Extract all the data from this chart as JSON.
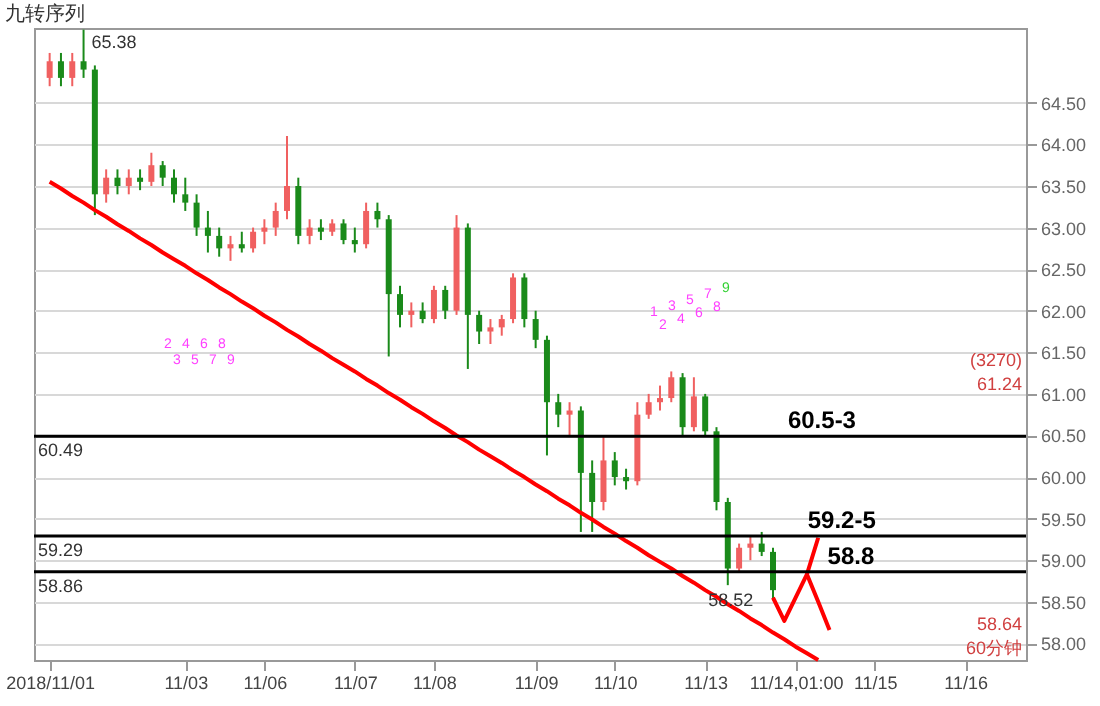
{
  "chart_data": {
    "type": "candlestick",
    "title": "九转序列",
    "categories": [
      "2018/11/01",
      null,
      null,
      null,
      null,
      null,
      null,
      null,
      null,
      null,
      null,
      null,
      "11/03",
      null,
      null,
      null,
      null,
      null,
      null,
      "11/06",
      null,
      null,
      null,
      null,
      null,
      null,
      null,
      "11/07",
      null,
      null,
      null,
      null,
      null,
      null,
      "11/08",
      null,
      null,
      null,
      null,
      null,
      null,
      null,
      null,
      "11/09",
      null,
      null,
      null,
      null,
      null,
      null,
      "11/10",
      null,
      null,
      null,
      null,
      null,
      null,
      null,
      "11/13",
      null,
      null,
      null,
      null,
      null,
      null,
      null,
      "11/14,01:00",
      null,
      null,
      null,
      null,
      null,
      null,
      "11/15",
      null,
      null,
      null,
      null,
      null,
      null,
      null,
      "11/16",
      null,
      null,
      null,
      null
    ],
    "ohlc": [
      [
        64.8,
        65.1,
        64.7,
        65.0
      ],
      [
        65.0,
        65.1,
        64.7,
        64.8
      ],
      [
        64.8,
        65.1,
        64.7,
        65.0
      ],
      [
        65.0,
        65.38,
        64.8,
        64.9
      ],
      [
        64.9,
        64.95,
        63.15,
        63.4
      ],
      [
        63.4,
        63.7,
        63.3,
        63.6
      ],
      [
        63.6,
        63.7,
        63.4,
        63.5
      ],
      [
        63.5,
        63.7,
        63.4,
        63.6
      ],
      [
        63.6,
        63.7,
        63.45,
        63.55
      ],
      [
        63.55,
        63.9,
        63.5,
        63.75
      ],
      [
        63.75,
        63.8,
        63.5,
        63.6
      ],
      [
        63.6,
        63.7,
        63.3,
        63.4
      ],
      [
        63.4,
        63.6,
        63.2,
        63.3
      ],
      [
        63.3,
        63.4,
        62.9,
        63.0
      ],
      [
        63.0,
        63.2,
        62.7,
        62.9
      ],
      [
        62.9,
        63.0,
        62.65,
        62.75
      ],
      [
        62.75,
        62.9,
        62.6,
        62.8
      ],
      [
        62.8,
        62.95,
        62.7,
        62.75
      ],
      [
        62.75,
        63.0,
        62.7,
        62.95
      ],
      [
        62.95,
        63.1,
        62.8,
        63.0
      ],
      [
        63.0,
        63.3,
        62.9,
        63.2
      ],
      [
        63.2,
        64.1,
        63.1,
        63.5
      ],
      [
        63.5,
        63.6,
        62.8,
        62.9
      ],
      [
        62.9,
        63.1,
        62.8,
        63.0
      ],
      [
        63.0,
        63.1,
        62.85,
        62.95
      ],
      [
        62.95,
        63.1,
        62.9,
        63.05
      ],
      [
        63.05,
        63.1,
        62.8,
        62.85
      ],
      [
        62.85,
        63.0,
        62.7,
        62.8
      ],
      [
        62.8,
        63.3,
        62.75,
        63.2
      ],
      [
        63.2,
        63.3,
        63.0,
        63.1
      ],
      [
        63.1,
        63.15,
        61.45,
        62.2
      ],
      [
        62.2,
        62.3,
        61.8,
        61.95
      ],
      [
        61.95,
        62.1,
        61.8,
        62.0
      ],
      [
        62.0,
        62.1,
        61.85,
        61.9
      ],
      [
        61.9,
        62.3,
        61.85,
        62.25
      ],
      [
        62.25,
        62.3,
        61.9,
        62.0
      ],
      [
        62.0,
        63.15,
        61.95,
        63.0
      ],
      [
        63.0,
        63.05,
        61.3,
        61.95
      ],
      [
        61.95,
        62.0,
        61.6,
        61.75
      ],
      [
        61.75,
        61.9,
        61.6,
        61.8
      ],
      [
        61.8,
        61.95,
        61.7,
        61.9
      ],
      [
        61.9,
        62.45,
        61.85,
        62.4
      ],
      [
        62.4,
        62.45,
        61.8,
        61.9
      ],
      [
        61.9,
        62.0,
        61.55,
        61.65
      ],
      [
        61.65,
        61.7,
        60.26,
        60.9
      ],
      [
        60.9,
        61.0,
        60.6,
        60.75
      ],
      [
        60.75,
        60.9,
        60.5,
        60.8
      ],
      [
        60.8,
        60.85,
        59.34,
        60.05
      ],
      [
        60.05,
        60.2,
        59.34,
        59.7
      ],
      [
        59.7,
        60.5,
        59.6,
        60.2
      ],
      [
        60.2,
        60.3,
        59.9,
        60.0
      ],
      [
        60.0,
        60.1,
        59.85,
        59.95
      ],
      [
        59.95,
        60.9,
        59.9,
        60.75
      ],
      [
        60.75,
        61.0,
        60.7,
        60.9
      ],
      [
        60.9,
        61.1,
        60.8,
        60.95
      ],
      [
        60.95,
        61.27,
        60.9,
        61.2
      ],
      [
        61.2,
        61.25,
        60.5,
        60.6
      ],
      [
        60.6,
        61.2,
        60.55,
        60.97
      ],
      [
        60.97,
        61.0,
        60.5,
        60.55
      ],
      [
        60.55,
        60.6,
        59.6,
        59.7
      ],
      [
        59.7,
        59.75,
        58.7,
        58.9
      ],
      [
        58.9,
        59.2,
        58.85,
        59.15
      ],
      [
        59.15,
        59.3,
        59.0,
        59.2
      ],
      [
        59.2,
        59.34,
        59.05,
        59.1
      ],
      [
        59.1,
        59.15,
        58.52,
        58.64
      ],
      null,
      null,
      null,
      null,
      null,
      null,
      null,
      null,
      null,
      null,
      null,
      null,
      null,
      null,
      null,
      null,
      null,
      null,
      null,
      null,
      null
    ],
    "colors": [
      "#f06060",
      "#1a8a1a",
      "#f06060",
      "#1a8a1a",
      "#1a8a1a",
      "#f06060",
      "#1a8a1a",
      "#f06060",
      "#1a8a1a",
      "#f06060",
      "#1a8a1a",
      "#1a8a1a",
      "#1a8a1a",
      "#1a8a1a",
      "#1a8a1a",
      "#1a8a1a",
      "#f06060",
      "#1a8a1a",
      "#f06060",
      "#f06060",
      "#f06060",
      "#f06060",
      "#1a8a1a",
      "#f06060",
      "#1a8a1a",
      "#f06060",
      "#1a8a1a",
      "#1a8a1a",
      "#f06060",
      "#1a8a1a",
      "#1a8a1a",
      "#1a8a1a",
      "#f06060",
      "#1a8a1a",
      "#f06060",
      "#1a8a1a",
      "#f06060",
      "#1a8a1a",
      "#1a8a1a",
      "#f06060",
      "#f06060",
      "#f06060",
      "#1a8a1a",
      "#1a8a1a",
      "#1a8a1a",
      "#1a8a1a",
      "#f06060",
      "#1a8a1a",
      "#1a8a1a",
      "#f06060",
      "#1a8a1a",
      "#1a8a1a",
      "#f06060",
      "#f06060",
      "#f06060",
      "#f06060",
      "#1a8a1a",
      "#f06060",
      "#1a8a1a",
      "#1a8a1a",
      "#1a8a1a",
      "#f06060",
      "#f06060",
      "#1a8a1a",
      "#1a8a1a",
      null,
      null,
      null,
      null,
      null,
      null,
      null,
      null,
      null,
      null,
      null,
      null,
      null,
      null,
      null,
      null,
      null,
      null,
      null,
      null,
      null
    ],
    "series": [
      {
        "type": "line",
        "color": "#ff0000",
        "values": [
          63.55,
          63.47,
          63.38,
          63.3,
          63.21,
          63.13,
          63.04,
          62.96,
          62.87,
          62.79,
          62.7,
          62.62,
          62.54,
          62.45,
          62.37,
          62.28,
          62.2,
          62.11,
          62.03,
          61.94,
          61.86,
          61.77,
          61.69,
          61.6,
          61.52,
          61.43,
          61.35,
          61.27,
          61.18,
          61.1,
          61.01,
          60.93,
          60.84,
          60.76,
          60.67,
          60.59,
          60.5,
          60.42,
          60.33,
          60.25,
          60.17,
          60.08,
          60.0,
          59.91,
          59.83,
          59.74,
          59.66,
          59.57,
          59.49,
          59.4,
          59.32,
          59.23,
          59.15,
          59.06,
          58.98,
          58.9,
          58.81,
          58.73,
          58.64,
          58.56,
          58.47,
          58.39,
          58.3,
          58.22,
          58.13,
          58.05,
          57.96,
          57.88,
          57.8,
          null,
          null,
          null,
          null,
          null,
          null,
          null,
          null,
          null,
          null,
          null,
          null,
          null,
          null,
          null,
          null,
          null
        ]
      },
      {
        "type": "line",
        "color": "#ff0000",
        "values": [
          null,
          null,
          null,
          null,
          null,
          null,
          null,
          null,
          null,
          null,
          null,
          null,
          null,
          null,
          null,
          null,
          null,
          null,
          null,
          null,
          null,
          null,
          null,
          null,
          null,
          null,
          null,
          null,
          null,
          null,
          null,
          null,
          null,
          null,
          null,
          null,
          null,
          null,
          null,
          null,
          null,
          null,
          null,
          null,
          null,
          null,
          null,
          null,
          null,
          null,
          null,
          null,
          null,
          null,
          null,
          null,
          null,
          null,
          null,
          null,
          null,
          null,
          null,
          null,
          58.55,
          58.27,
          58.55,
          58.83,
          59.27,
          null,
          null,
          null,
          null,
          null,
          null,
          null,
          null,
          null,
          null,
          null,
          null,
          null,
          null,
          null,
          null,
          null
        ]
      },
      {
        "type": "line",
        "color": "#ff0000",
        "values": [
          null,
          null,
          null,
          null,
          null,
          null,
          null,
          null,
          null,
          null,
          null,
          null,
          null,
          null,
          null,
          null,
          null,
          null,
          null,
          null,
          null,
          null,
          null,
          null,
          null,
          null,
          null,
          null,
          null,
          null,
          null,
          null,
          null,
          null,
          null,
          null,
          null,
          null,
          null,
          null,
          null,
          null,
          null,
          null,
          null,
          null,
          null,
          null,
          null,
          null,
          null,
          null,
          null,
          null,
          null,
          null,
          null,
          null,
          null,
          null,
          null,
          null,
          null,
          null,
          null,
          null,
          null,
          58.83,
          58.5,
          58.16,
          null,
          null,
          null,
          null,
          null,
          null,
          null,
          null,
          null,
          null,
          null,
          null,
          null,
          null,
          null,
          null
        ]
      }
    ],
    "ref_lines": [
      {
        "axis": "y",
        "value": 60.49,
        "label": "60.49",
        "color": "#000000"
      },
      {
        "axis": "y",
        "value": 59.29,
        "label": "59.29",
        "color": "#000000"
      },
      {
        "axis": "y",
        "value": 58.86,
        "label": "58.86",
        "color": "#000000"
      }
    ],
    "annotations": [
      "65.38",
      "58.52",
      {
        "text": "60.5-3",
        "y": 60.49
      },
      {
        "text": "59.2-5",
        "y": 59.29
      },
      {
        "text": "58.8",
        "y": 58.86
      },
      "(3270)",
      "61.24",
      "58.64",
      "60分钟",
      "2",
      "3",
      "4",
      "5",
      "6",
      "7",
      "8",
      "9",
      "1",
      "2",
      "3",
      "4",
      "5",
      "6",
      "7",
      "8",
      "9"
    ],
    "ylim": [
      57.8,
      65.4
    ],
    "yticks": [
      {
        "value": 58,
        "label": "58.00"
      },
      {
        "value": 58.5,
        "label": "58.50"
      },
      {
        "value": 59,
        "label": "59.00"
      },
      {
        "value": 59.5,
        "label": "59.50"
      },
      {
        "value": 60,
        "label": "60.00"
      },
      {
        "value": 60.5,
        "label": "60.50"
      },
      {
        "value": 61,
        "label": "61.00"
      },
      {
        "value": 61.5,
        "label": "61.50"
      },
      {
        "value": 62,
        "label": "62.00"
      },
      {
        "value": 62.5,
        "label": "62.50"
      },
      {
        "value": 63,
        "label": "63.00"
      },
      {
        "value": 63.5,
        "label": "63.50"
      },
      {
        "value": 64,
        "label": "64.00"
      },
      {
        "value": 64.5,
        "label": "64.50"
      }
    ],
    "grid": "y"
  }
}
